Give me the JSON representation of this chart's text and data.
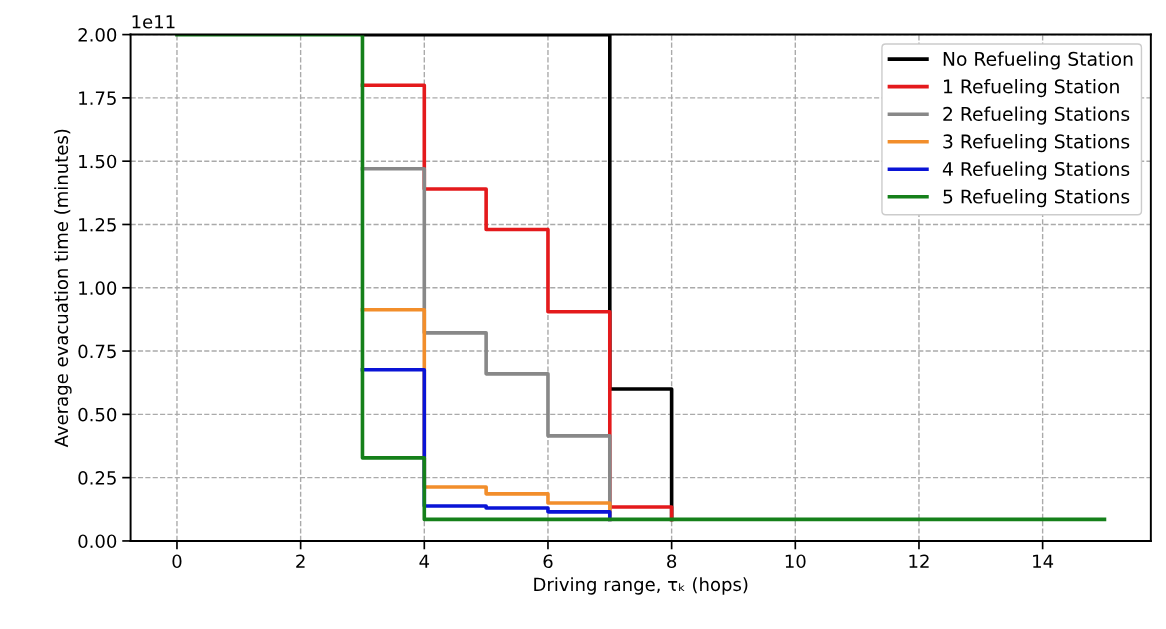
{
  "chart_data": {
    "type": "step",
    "xlabel": "Driving range, τₖ (hops)",
    "ylabel": "Average evacuation time (minutes)",
    "annotations": [
      "1e11"
    ],
    "x": [
      0,
      1,
      2,
      3,
      4,
      5,
      6,
      7,
      8,
      9,
      10,
      11,
      12,
      13,
      14,
      15
    ],
    "series": [
      {
        "name": "No Refueling Station",
        "color": "#000000",
        "values": [
          null,
          null,
          null,
          2.0,
          2.0,
          2.0,
          2.0,
          0.6,
          0.085,
          null,
          null,
          null,
          null,
          null,
          null,
          null
        ]
      },
      {
        "name": "1 Refueling Station",
        "color": "#e41a1c",
        "values": [
          null,
          null,
          null,
          1.8,
          1.39,
          1.23,
          0.905,
          0.134,
          0.085,
          null,
          null,
          null,
          null,
          null,
          null,
          null
        ]
      },
      {
        "name": "2 Refueling Stations",
        "color": "#888888",
        "values": [
          null,
          null,
          null,
          1.47,
          0.822,
          0.66,
          0.415,
          0.103,
          null,
          null,
          null,
          null,
          null,
          null,
          null,
          null
        ]
      },
      {
        "name": "3 Refueling Stations",
        "color": "#f28e2b",
        "values": [
          null,
          null,
          null,
          0.913,
          0.213,
          0.186,
          0.15,
          0.085,
          null,
          null,
          null,
          null,
          null,
          null,
          null,
          null
        ]
      },
      {
        "name": "4 Refueling Stations",
        "color": "#0a14d6",
        "values": [
          null,
          null,
          null,
          0.676,
          0.138,
          0.13,
          0.115,
          0.085,
          null,
          null,
          null,
          null,
          null,
          null,
          null,
          null
        ]
      },
      {
        "name": "5 Refueling Stations",
        "color": "#15801a",
        "values": [
          2.0,
          2.0,
          2.0,
          0.328,
          0.085,
          0.085,
          0.085,
          0.085,
          0.085,
          0.085,
          0.085,
          0.085,
          0.085,
          0.085,
          0.085,
          0.085
        ]
      }
    ],
    "xlim": [
      -0.75,
      15.75
    ],
    "xticks": [
      0,
      2,
      4,
      6,
      8,
      10,
      12,
      14
    ],
    "ylim": [
      0,
      2.0
    ],
    "yticks": [
      {
        "value": 0,
        "label": "0.00"
      },
      {
        "value": 0.25,
        "label": "0.25"
      },
      {
        "value": 0.5,
        "label": "0.50"
      },
      {
        "value": 0.75,
        "label": "0.75"
      },
      {
        "value": 1.0,
        "label": "1.00"
      },
      {
        "value": 1.25,
        "label": "1.25"
      },
      {
        "value": 1.5,
        "label": "1.50"
      },
      {
        "value": 1.75,
        "label": "1.75"
      },
      {
        "value": 2.0,
        "label": "2.00"
      }
    ],
    "grid": true,
    "legend": "top right"
  }
}
